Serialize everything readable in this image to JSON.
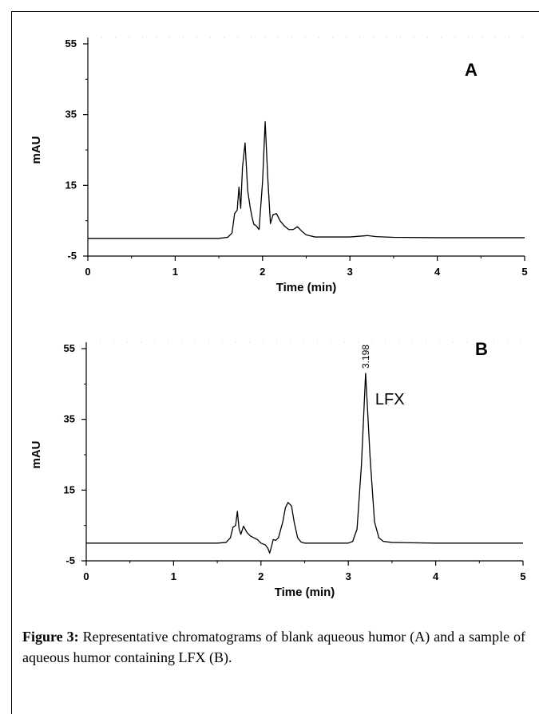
{
  "chart_data": [
    {
      "type": "line",
      "panel_label": "A",
      "xlabel": "Time (min)",
      "ylabel": "mAU",
      "xlim": [
        0,
        5
      ],
      "ylim": [
        -5,
        55
      ],
      "xticks": [
        0,
        1,
        2,
        3,
        4,
        5
      ],
      "yticks": [
        -5,
        15,
        35,
        55
      ],
      "grid": false,
      "series": [
        {
          "x": [
            0,
            0.5,
            1.0,
            1.5,
            1.6,
            1.65,
            1.68,
            1.71,
            1.73,
            1.75,
            1.77,
            1.8,
            1.83,
            1.86,
            1.88,
            1.9,
            1.93,
            1.96,
            2.0,
            2.03,
            2.06,
            2.09,
            2.12,
            2.16,
            2.2,
            2.25,
            2.3,
            2.35,
            2.4,
            2.45,
            2.5,
            2.6,
            2.8,
            3.0,
            3.1,
            3.2,
            3.3,
            3.5,
            4.0,
            4.5,
            5.0
          ],
          "y": [
            0,
            0,
            0,
            0,
            0.3,
            1.5,
            7,
            8,
            14.5,
            8.5,
            20,
            27,
            13.5,
            8.5,
            6,
            4,
            3.5,
            2.5,
            16,
            33,
            17,
            4.2,
            6.7,
            7,
            5,
            3.5,
            2.5,
            2.5,
            3.3,
            2,
            1,
            0.4,
            0.4,
            0.4,
            0.6,
            0.8,
            0.5,
            0.3,
            0.2,
            0.2,
            0.2
          ]
        }
      ]
    },
    {
      "type": "line",
      "panel_label": "B",
      "xlabel": "Time (min)",
      "ylabel": "mAU",
      "xlim": [
        0,
        5
      ],
      "ylim": [
        -5,
        55
      ],
      "xticks": [
        0,
        1,
        2,
        3,
        4,
        5
      ],
      "yticks": [
        -5,
        15,
        35,
        55
      ],
      "grid": false,
      "annotations": [
        {
          "text": "3.198",
          "x": 3.198,
          "y": 48,
          "role": "retention-time"
        },
        {
          "text": "LFX",
          "x": 3.198,
          "y": 41,
          "role": "peak-name"
        }
      ],
      "series": [
        {
          "x": [
            0,
            0.5,
            1.0,
            1.5,
            1.6,
            1.65,
            1.68,
            1.71,
            1.73,
            1.75,
            1.77,
            1.8,
            1.84,
            1.88,
            1.92,
            1.96,
            2.0,
            2.05,
            2.08,
            2.1,
            2.12,
            2.14,
            2.17,
            2.2,
            2.25,
            2.28,
            2.31,
            2.35,
            2.38,
            2.42,
            2.46,
            2.5,
            2.6,
            2.8,
            3.0,
            3.05,
            3.1,
            3.15,
            3.198,
            3.25,
            3.3,
            3.35,
            3.4,
            3.5,
            4.0,
            4.5,
            5.0
          ],
          "y": [
            0,
            0,
            0,
            0,
            0.2,
            1.5,
            4.5,
            5,
            9,
            4,
            2.5,
            4.8,
            3,
            2,
            1.5,
            1,
            0,
            -0.5,
            -1.5,
            -2.8,
            -1,
            1,
            0.8,
            1.5,
            6,
            10,
            11.5,
            10.5,
            6,
            1.5,
            0.3,
            0,
            0,
            0,
            0,
            0.5,
            4,
            22,
            48,
            24,
            6,
            1.5,
            0.5,
            0.2,
            0,
            0,
            0
          ]
        }
      ]
    }
  ],
  "caption": {
    "label": "Figure 3:",
    "text": " Representative chromatograms of blank aqueous humor (A) and a sample of aqueous humor containing LFX (B)."
  }
}
